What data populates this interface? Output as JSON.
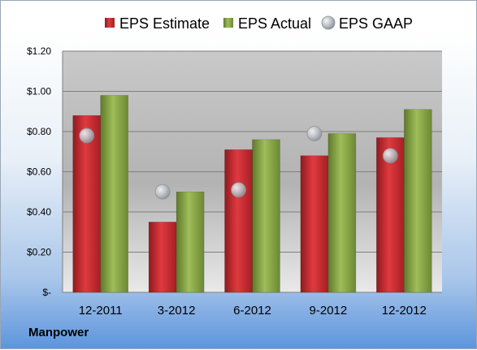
{
  "chart_data": {
    "type": "bar",
    "categories": [
      "12-2011",
      "3-2012",
      "6-2012",
      "9-2012",
      "12-2012"
    ],
    "series": [
      {
        "name": "EPS Estimate",
        "kind": "bar",
        "color": "#c8282d",
        "values": [
          0.88,
          0.35,
          0.71,
          0.68,
          0.77
        ]
      },
      {
        "name": "EPS Actual",
        "kind": "bar",
        "color": "#8aa845",
        "values": [
          0.98,
          0.5,
          0.76,
          0.79,
          0.91
        ]
      },
      {
        "name": "EPS GAAP",
        "kind": "marker",
        "color": "#b8bcc2",
        "values": [
          0.78,
          0.5,
          0.51,
          0.79,
          0.68
        ]
      }
    ],
    "yticks": [
      {
        "value": 0,
        "label": "$-"
      },
      {
        "value": 0.2,
        "label": "$0.20"
      },
      {
        "value": 0.4,
        "label": "$0.40"
      },
      {
        "value": 0.6,
        "label": "$0.60"
      },
      {
        "value": 0.8,
        "label": "$0.80"
      },
      {
        "value": 1.0,
        "label": "$1.00"
      },
      {
        "value": 1.2,
        "label": "$1.20"
      }
    ],
    "ylim": [
      0,
      1.2
    ],
    "grid": true,
    "legend_position": "top"
  },
  "company": "Manpower"
}
